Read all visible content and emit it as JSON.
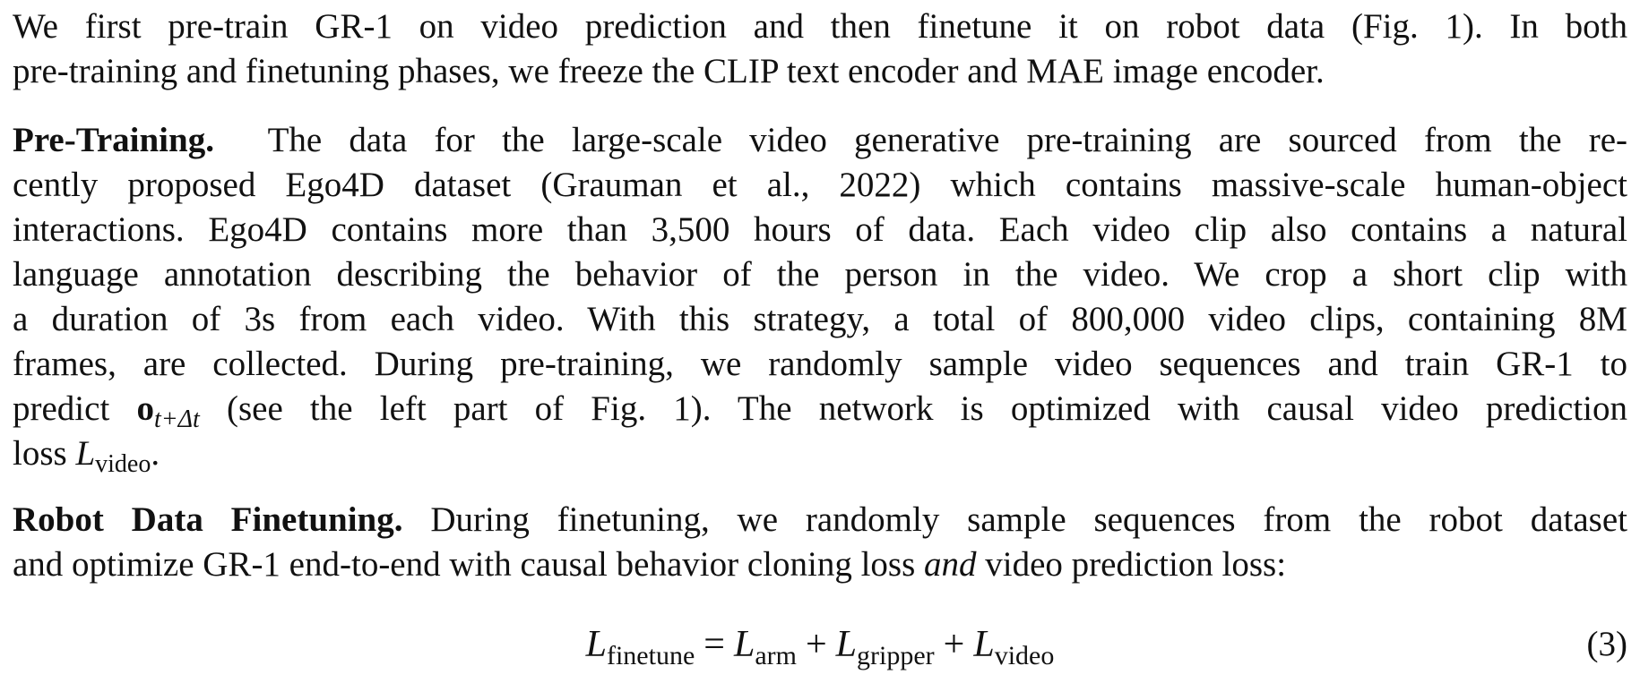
{
  "paragraphs": {
    "intro": {
      "lines": [
        "We first pre-train GR-1 on video prediction and then finetune it on robot data (Fig. 1).  In both",
        "pre-training and finetuning phases, we freeze the CLIP text encoder and MAE image encoder."
      ]
    },
    "pretraining": {
      "heading": "Pre-Training.",
      "lines": [
        "The data for the large-scale video generative pre-training are sourced from the re-",
        "cently proposed Ego4D dataset (Grauman et al., 2022) which contains massive-scale human-object",
        "interactions. Ego4D contains more than 3,500 hours of data. Each video clip also contains a natural",
        "language annotation describing the behavior of the person in the video.  We crop a short clip with",
        "a duration of 3s from each video.  With this strategy, a total of 800,000 video clips, containing 8M",
        "frames, are collected. During pre-training, we randomly sample video sequences and train GR-1 to"
      ],
      "predict_prefix": "predict ",
      "predict_symbol": "o",
      "predict_subscript": "t+Δt",
      "predict_suffix": " (see the left part of Fig. 1).  The network is optimized with causal video prediction",
      "loss_prefix": "loss ",
      "loss_symbol": "L",
      "loss_subscript": "video",
      "loss_suffix": "."
    },
    "finetuning": {
      "heading": "Robot Data Finetuning.",
      "line1_rest": "During finetuning, we randomly sample sequences from the robot dataset",
      "line2_prefix": "and optimize GR-1 end-to-end with causal behavior cloning loss ",
      "line2_italic": "and",
      "line2_suffix": " video prediction loss:"
    }
  },
  "equation": {
    "lhs_symbol": "L",
    "lhs_subscript": "finetune",
    "equals": "=",
    "term1_symbol": "L",
    "term1_subscript": "arm",
    "plus1": "+",
    "term2_symbol": "L",
    "term2_subscript": "gripper",
    "plus2": "+",
    "term3_symbol": "L",
    "term3_subscript": "video",
    "number": "(3)"
  }
}
